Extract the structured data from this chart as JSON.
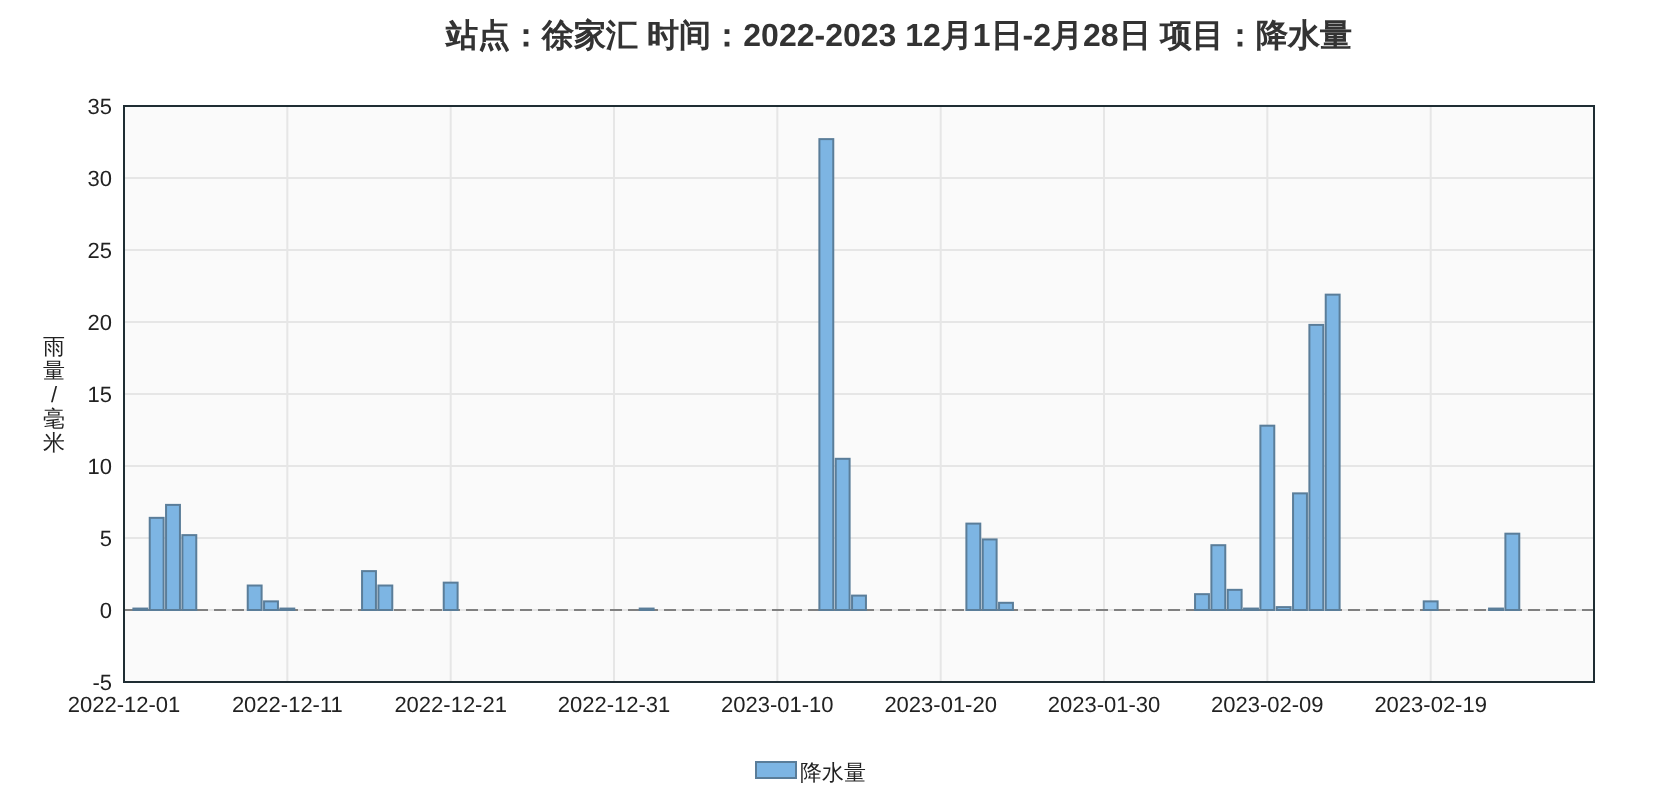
{
  "chart_data": {
    "type": "bar",
    "title": "站点：徐家汇 时间：2022-2023  12月1日-2月28日 项目：降水量",
    "ylabel": "雨量/毫米",
    "x": [
      "2022-12-02",
      "2022-12-03",
      "2022-12-04",
      "2022-12-05",
      "2022-12-09",
      "2022-12-10",
      "2022-12-11",
      "2022-12-16",
      "2022-12-17",
      "2022-12-21",
      "2023-01-02",
      "2023-01-13",
      "2023-01-14",
      "2023-01-15",
      "2023-01-22",
      "2023-01-23",
      "2023-01-24",
      "2023-02-05",
      "2023-02-06",
      "2023-02-07",
      "2023-02-08",
      "2023-02-09",
      "2023-02-10",
      "2023-02-11",
      "2023-02-12",
      "2023-02-13",
      "2023-02-19",
      "2023-02-23",
      "2023-02-24"
    ],
    "series": [
      {
        "name": "降水量",
        "color": "#7db5e3",
        "values": [
          0.1,
          6.4,
          7.3,
          5.2,
          1.7,
          0.6,
          0.1,
          2.7,
          1.7,
          1.9,
          0.1,
          32.7,
          10.5,
          1.0,
          6.0,
          4.9,
          0.5,
          1.1,
          4.5,
          1.4,
          0.1,
          12.8,
          0.2,
          8.1,
          19.8,
          21.9,
          0.6,
          0.1,
          5.3
        ]
      }
    ],
    "xlim": [
      "2022-12-01",
      "2023-03-01"
    ],
    "xticks": [
      "2022-12-01",
      "2022-12-11",
      "2022-12-21",
      "2022-12-31",
      "2023-01-10",
      "2023-01-20",
      "2023-01-30",
      "2023-02-09",
      "2023-02-19"
    ],
    "ylim": [
      -5,
      35
    ],
    "yticks": [
      -5,
      0,
      5,
      10,
      15,
      20,
      25,
      30,
      35
    ],
    "ref_lines": [
      {
        "axis": "y",
        "value": 0,
        "color": "#808080",
        "line_style": "dashed"
      }
    ],
    "grid": true,
    "legend": "bottom"
  }
}
